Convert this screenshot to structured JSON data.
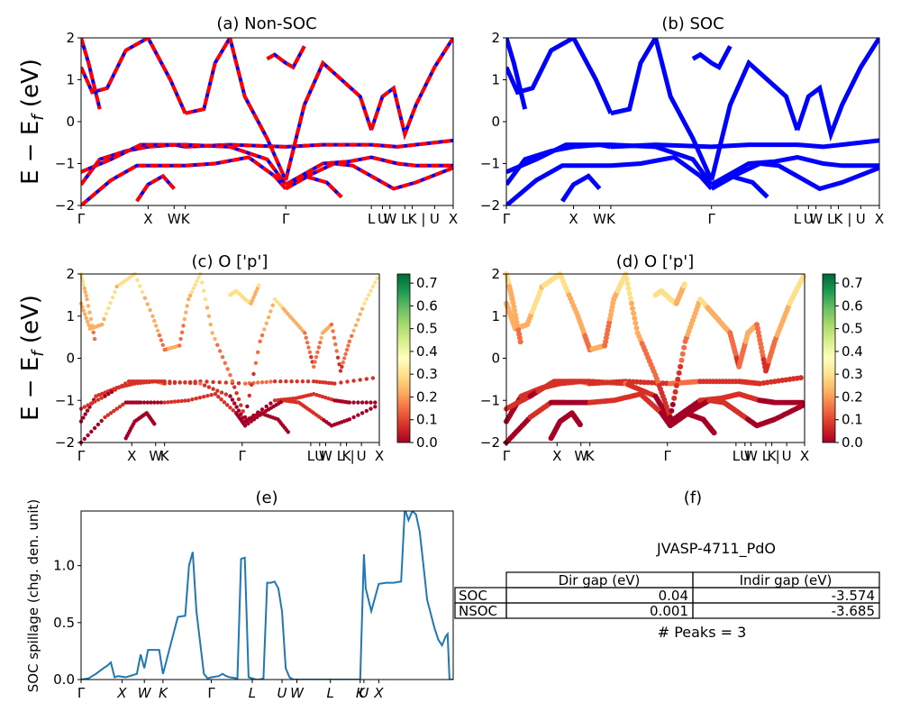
{
  "chart_data": [
    {
      "id": "a",
      "type": "line",
      "title": "(a) Non-SOC",
      "ylabel": "E − E_f (eV)",
      "ylim": [
        -2,
        2
      ],
      "yticks": [
        "2",
        "1",
        "0",
        "−1",
        "−2"
      ],
      "kpath_labels": [
        "Γ",
        "X",
        "W",
        "K",
        "Γ",
        "L",
        "U",
        "W",
        "L",
        "K",
        "|",
        "U",
        "X"
      ],
      "kpath_positions": [
        0.0,
        0.18,
        0.25,
        0.28,
        0.55,
        0.78,
        0.81,
        0.83,
        0.87,
        0.89,
        0.92,
        0.95,
        1.0
      ],
      "series_colors": [
        "#ff0000",
        "#0000ff"
      ],
      "line_style": "red solid with blue dashed overlay",
      "bands": [
        {
          "x": [
            0.0,
            0.05,
            0.12,
            0.18,
            0.25,
            0.28
          ],
          "y": [
            -1.5,
            -0.9,
            -0.7,
            -0.6,
            -0.55,
            -0.6
          ]
        },
        {
          "x": [
            0.28,
            0.4,
            0.55,
            0.65,
            0.78,
            0.85,
            1.0
          ],
          "y": [
            -0.6,
            -0.55,
            -0.6,
            -0.55,
            -0.55,
            -0.6,
            -0.45
          ]
        },
        {
          "x": [
            0.0,
            0.08,
            0.16,
            0.22,
            0.28,
            0.4,
            0.5,
            0.55
          ],
          "y": [
            -1.2,
            -0.9,
            -0.55,
            -0.55,
            -0.55,
            -0.6,
            -0.9,
            -1.5
          ]
        },
        {
          "x": [
            0.55,
            0.65,
            0.72,
            0.78,
            0.85,
            0.9,
            1.0
          ],
          "y": [
            -1.5,
            -1.0,
            -0.95,
            -0.85,
            -1.0,
            -1.05,
            -1.05
          ]
        },
        {
          "x": [
            0.0,
            0.08,
            0.15,
            0.2,
            0.28,
            0.36,
            0.45,
            0.52,
            0.55
          ],
          "y": [
            -2.0,
            -1.4,
            -1.05,
            -1.05,
            -1.05,
            -1.0,
            -0.85,
            -1.3,
            -1.6
          ]
        },
        {
          "x": [
            0.55,
            0.62,
            0.68,
            0.73,
            0.78,
            0.84,
            0.9,
            1.0
          ],
          "y": [
            -1.6,
            -1.25,
            -1.0,
            -1.05,
            -1.3,
            -1.6,
            -1.45,
            -1.1
          ]
        },
        {
          "x": [
            0.0,
            0.03,
            0.07,
            0.12,
            0.18,
            0.24,
            0.28
          ],
          "y": [
            1.3,
            0.7,
            0.8,
            1.7,
            2.0,
            1.0,
            0.2
          ]
        },
        {
          "x": [
            0.28,
            0.33,
            0.36,
            0.4,
            0.44,
            0.5,
            0.55
          ],
          "y": [
            0.2,
            0.3,
            1.4,
            2.0,
            0.6,
            -0.4,
            -1.4
          ]
        },
        {
          "x": [
            0.55,
            0.6,
            0.65,
            0.7,
            0.75,
            0.78
          ],
          "y": [
            -1.4,
            0.4,
            1.4,
            1.0,
            0.6,
            -0.2
          ]
        },
        {
          "x": [
            0.78,
            0.81,
            0.84,
            0.87,
            0.9,
            0.95,
            1.0
          ],
          "y": [
            -0.2,
            0.6,
            0.8,
            -0.3,
            0.4,
            1.3,
            2.0
          ]
        },
        {
          "x": [
            0.0,
            0.02,
            0.05
          ],
          "y": [
            2.0,
            1.4,
            0.3
          ]
        },
        {
          "x": [
            0.5,
            0.52,
            0.55,
            0.57,
            0.6
          ],
          "y": [
            1.5,
            1.6,
            1.4,
            1.3,
            1.8
          ]
        },
        {
          "x": [
            0.15,
            0.18,
            0.22,
            0.25
          ],
          "y": [
            -1.9,
            -1.5,
            -1.3,
            -1.6
          ]
        },
        {
          "x": [
            0.55,
            0.6,
            0.66,
            0.7
          ],
          "y": [
            -1.5,
            -1.3,
            -1.45,
            -1.8
          ]
        }
      ]
    },
    {
      "id": "b",
      "type": "line",
      "title": "(b) SOC",
      "ylim": [
        -2,
        2
      ],
      "yticks": [
        "2",
        "1",
        "0",
        "−1",
        "−2"
      ],
      "kpath_labels": [
        "Γ",
        "X",
        "W",
        "K",
        "Γ",
        "L",
        "U",
        "W",
        "L",
        "K",
        "|",
        "U",
        "X"
      ],
      "kpath_positions": [
        0.0,
        0.18,
        0.25,
        0.28,
        0.55,
        0.78,
        0.81,
        0.83,
        0.87,
        0.89,
        0.92,
        0.95,
        1.0
      ],
      "series_colors": [
        "#0000ff"
      ],
      "bands": [
        {
          "x": [
            0.0,
            0.05,
            0.12,
            0.18,
            0.25,
            0.28
          ],
          "y": [
            -1.5,
            -0.9,
            -0.7,
            -0.6,
            -0.55,
            -0.6
          ]
        },
        {
          "x": [
            0.28,
            0.4,
            0.55,
            0.65,
            0.78,
            0.85,
            1.0
          ],
          "y": [
            -0.6,
            -0.55,
            -0.6,
            -0.55,
            -0.55,
            -0.6,
            -0.45
          ]
        },
        {
          "x": [
            0.0,
            0.08,
            0.16,
            0.22,
            0.28,
            0.4,
            0.5,
            0.55
          ],
          "y": [
            -1.2,
            -0.9,
            -0.55,
            -0.55,
            -0.55,
            -0.6,
            -0.9,
            -1.5
          ]
        },
        {
          "x": [
            0.55,
            0.65,
            0.72,
            0.78,
            0.85,
            0.9,
            1.0
          ],
          "y": [
            -1.5,
            -1.0,
            -0.95,
            -0.85,
            -1.0,
            -1.05,
            -1.05
          ]
        },
        {
          "x": [
            0.0,
            0.08,
            0.15,
            0.2,
            0.28,
            0.36,
            0.45,
            0.52,
            0.55
          ],
          "y": [
            -2.0,
            -1.4,
            -1.05,
            -1.05,
            -1.05,
            -1.0,
            -0.85,
            -1.3,
            -1.6
          ]
        },
        {
          "x": [
            0.55,
            0.62,
            0.68,
            0.73,
            0.78,
            0.84,
            0.9,
            1.0
          ],
          "y": [
            -1.6,
            -1.25,
            -1.0,
            -1.05,
            -1.3,
            -1.6,
            -1.45,
            -1.1
          ]
        },
        {
          "x": [
            0.0,
            0.03,
            0.07,
            0.12,
            0.18,
            0.24,
            0.28
          ],
          "y": [
            1.3,
            0.7,
            0.8,
            1.7,
            2.0,
            1.0,
            0.2
          ]
        },
        {
          "x": [
            0.28,
            0.33,
            0.36,
            0.4,
            0.44,
            0.5,
            0.55
          ],
          "y": [
            0.2,
            0.3,
            1.4,
            2.0,
            0.6,
            -0.4,
            -1.4
          ]
        },
        {
          "x": [
            0.55,
            0.6,
            0.65,
            0.7,
            0.75,
            0.78
          ],
          "y": [
            -1.4,
            0.4,
            1.4,
            1.0,
            0.6,
            -0.2
          ]
        },
        {
          "x": [
            0.78,
            0.81,
            0.84,
            0.87,
            0.9,
            0.95,
            1.0
          ],
          "y": [
            -0.2,
            0.6,
            0.8,
            -0.3,
            0.4,
            1.3,
            2.0
          ]
        },
        {
          "x": [
            0.0,
            0.02,
            0.05
          ],
          "y": [
            2.0,
            1.4,
            0.3
          ]
        },
        {
          "x": [
            0.5,
            0.52,
            0.55,
            0.57,
            0.6
          ],
          "y": [
            1.5,
            1.6,
            1.4,
            1.3,
            1.8
          ]
        },
        {
          "x": [
            0.15,
            0.18,
            0.22,
            0.25
          ],
          "y": [
            -1.9,
            -1.5,
            -1.3,
            -1.6
          ]
        },
        {
          "x": [
            0.55,
            0.6,
            0.66,
            0.7
          ],
          "y": [
            -1.5,
            -1.3,
            -1.45,
            -1.8
          ]
        }
      ]
    },
    {
      "id": "c",
      "type": "scatter",
      "title": "(c)  O ['p']",
      "ylabel": "E − E_f (eV)",
      "ylim": [
        -2,
        2
      ],
      "yticks": [
        "2",
        "1",
        "0",
        "−1",
        "−2"
      ],
      "kpath_labels": [
        "Γ",
        "X",
        "W",
        "K",
        "Γ",
        "L",
        "U",
        "W",
        "L",
        "K",
        "|",
        "U",
        "X"
      ],
      "kpath_positions": [
        0.0,
        0.17,
        0.25,
        0.28,
        0.54,
        0.77,
        0.8,
        0.82,
        0.87,
        0.89,
        0.91,
        0.94,
        1.0
      ],
      "colorbar": {
        "min": 0.0,
        "max": 0.7,
        "ticks": [
          "0.7",
          "0.6",
          "0.5",
          "0.4",
          "0.3",
          "0.2",
          "0.1",
          "0.0"
        ],
        "colormap": "RdYlGn"
      },
      "marker_color_value_range": [
        0.0,
        0.4
      ]
    },
    {
      "id": "d",
      "type": "scatter",
      "title": "(d) O ['p']",
      "ylim": [
        -2,
        2
      ],
      "yticks": [
        "2",
        "1",
        "0",
        "−1",
        "−2"
      ],
      "kpath_labels": [
        "Γ",
        "X",
        "W",
        "K",
        "Γ",
        "L",
        "U",
        "W",
        "L",
        "K",
        "|",
        "U",
        "X"
      ],
      "kpath_positions": [
        0.0,
        0.17,
        0.25,
        0.28,
        0.54,
        0.77,
        0.8,
        0.82,
        0.87,
        0.89,
        0.91,
        0.94,
        1.0
      ],
      "colorbar": {
        "min": 0.0,
        "max": 0.7,
        "ticks": [
          "0.7",
          "0.6",
          "0.5",
          "0.4",
          "0.3",
          "0.2",
          "0.1",
          "0.0"
        ],
        "colormap": "RdYlGn"
      },
      "marker_color_value_range": [
        0.0,
        0.4
      ]
    },
    {
      "id": "e",
      "type": "line",
      "title": "(e)",
      "ylabel": "SOC spillage (chg. den. unit)",
      "ylim": [
        0,
        1.5
      ],
      "yticks": [
        "1.0",
        "0.5",
        "0.0"
      ],
      "xtick_labels": [
        "Γ",
        "X",
        "W",
        "K",
        "Γ",
        "L",
        "U",
        "W",
        "L",
        "K",
        "U",
        "X"
      ],
      "xtick_positions": [
        0.0,
        0.11,
        0.17,
        0.22,
        0.35,
        0.46,
        0.54,
        0.58,
        0.67,
        0.75,
        0.76,
        0.8
      ],
      "color": "#1f77b4",
      "x": [
        0.0,
        0.02,
        0.04,
        0.06,
        0.07,
        0.08,
        0.09,
        0.1,
        0.12,
        0.15,
        0.16,
        0.17,
        0.18,
        0.21,
        0.22,
        0.26,
        0.28,
        0.29,
        0.3,
        0.31,
        0.33,
        0.34,
        0.35,
        0.37,
        0.38,
        0.39,
        0.4,
        0.42,
        0.43,
        0.44,
        0.45,
        0.47,
        0.48,
        0.49,
        0.5,
        0.51,
        0.52,
        0.53,
        0.54,
        0.55,
        0.56,
        0.57,
        0.6,
        0.61,
        0.62,
        0.63,
        0.65,
        0.7,
        0.75,
        0.76,
        0.765,
        0.78,
        0.8,
        0.82,
        0.84,
        0.86,
        0.87,
        0.88,
        0.89,
        0.9,
        0.91,
        0.92,
        0.93,
        0.95,
        0.96,
        0.97,
        0.98,
        0.985,
        0.99,
        1.0
      ],
      "y": [
        0.0,
        0.01,
        0.05,
        0.1,
        0.12,
        0.15,
        0.02,
        0.03,
        0.02,
        0.05,
        0.22,
        0.1,
        0.26,
        0.26,
        0.05,
        0.55,
        0.56,
        1.0,
        1.12,
        0.6,
        0.05,
        0.01,
        0.02,
        0.03,
        0.05,
        0.03,
        0.02,
        0.01,
        1.06,
        1.07,
        0.02,
        0.0,
        0.0,
        0.01,
        0.85,
        0.85,
        0.86,
        0.8,
        0.6,
        0.1,
        0.02,
        0.0,
        0.0,
        0.0,
        0.0,
        0.0,
        0.0,
        0.0,
        0.0,
        1.1,
        0.8,
        0.6,
        0.84,
        0.85,
        0.85,
        0.86,
        1.5,
        1.4,
        1.48,
        1.45,
        1.3,
        1.0,
        0.7,
        0.45,
        0.35,
        0.3,
        0.38,
        0.4,
        0.0,
        0.0
      ]
    }
  ],
  "table": {
    "title": "(f)",
    "material": "JVASP-4711_PdO",
    "columns": [
      "Dir gap (eV)",
      "Indir gap (eV)"
    ],
    "rows": [
      {
        "label": "SOC",
        "dir": "0.04",
        "indir": "-3.574"
      },
      {
        "label": "NSOC",
        "dir": "0.001",
        "indir": "-3.685"
      }
    ],
    "peaks": "# Peaks = 3"
  }
}
